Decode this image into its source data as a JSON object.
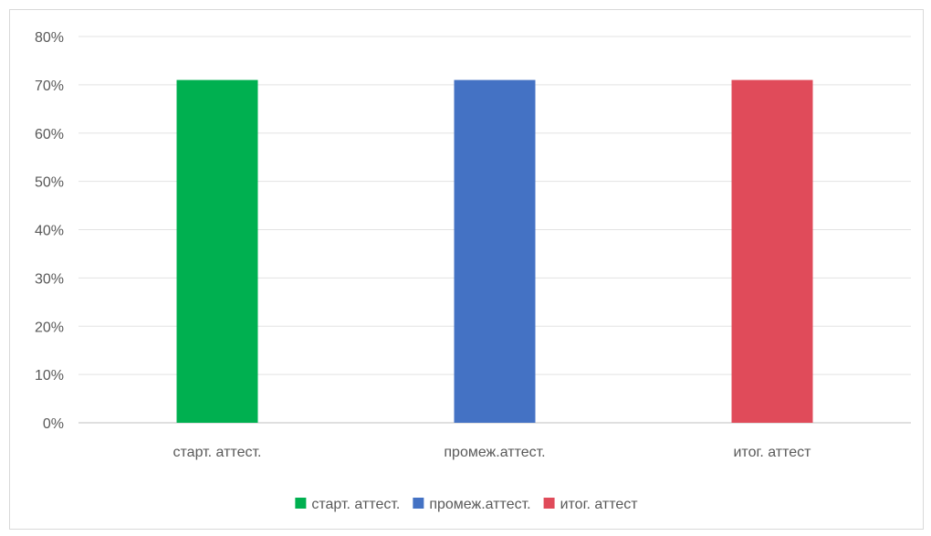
{
  "chart_data": {
    "type": "bar",
    "categories": [
      "старт. аттест.",
      "промеж.аттест.",
      "итог. аттест"
    ],
    "values": [
      71,
      71,
      71
    ],
    "colors": [
      "#00b050",
      "#4472c4",
      "#e04b5a"
    ],
    "ylim": [
      0,
      80
    ],
    "y_ticks": [
      "0%",
      "10%",
      "20%",
      "30%",
      "40%",
      "50%",
      "60%",
      "70%",
      "80%"
    ],
    "grid": true,
    "legend": {
      "placement": "bottom",
      "entries": [
        "старт. аттест.",
        "промеж.аттест.",
        "итог. аттест"
      ]
    }
  }
}
